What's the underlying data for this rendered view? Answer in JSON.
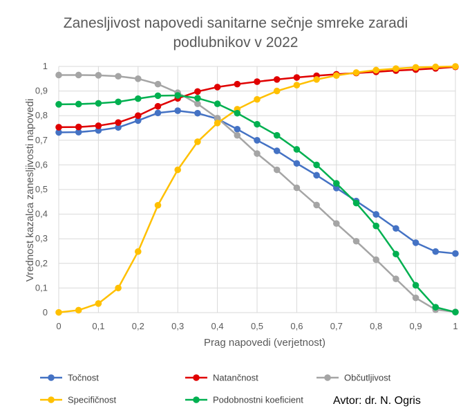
{
  "chart_data": {
    "type": "line",
    "title_lines": [
      "Zanesljivost napovedi sanitarne sečnje smreke zaradi",
      "podlubnikov v 2022"
    ],
    "xlabel": "Prag napovedi (verjetnost)",
    "ylabel": "Vrednost kazalca zanesljivosti napovedi",
    "xlim": [
      0,
      1
    ],
    "ylim": [
      0,
      1
    ],
    "grid": true,
    "legend_position": "bottom",
    "x_ticks": [
      "0",
      "0,1",
      "0,2",
      "0,3",
      "0,4",
      "0,5",
      "0,6",
      "0,7",
      "0,8",
      "0,9",
      "1"
    ],
    "y_ticks": [
      "0",
      "0,1",
      "0,2",
      "0,3",
      "0,4",
      "0,5",
      "0,6",
      "0,7",
      "0,8",
      "0,9",
      "1"
    ],
    "x": [
      0,
      0.05,
      0.1,
      0.15,
      0.2,
      0.25,
      0.3,
      0.35,
      0.4,
      0.45,
      0.5,
      0.55,
      0.6,
      0.65,
      0.7,
      0.75,
      0.8,
      0.85,
      0.9,
      0.95,
      1.0
    ],
    "series": [
      {
        "name": "Točnost",
        "color": "#4472C4",
        "values": [
          0.732,
          0.733,
          0.74,
          0.752,
          0.78,
          0.811,
          0.82,
          0.81,
          0.787,
          0.745,
          0.7,
          0.657,
          0.606,
          0.558,
          0.506,
          0.453,
          0.399,
          0.342,
          0.284,
          0.248,
          0.24
        ]
      },
      {
        "name": "Natančnost",
        "color": "#E00000",
        "values": [
          0.753,
          0.754,
          0.759,
          0.772,
          0.8,
          0.838,
          0.87,
          0.898,
          0.916,
          0.928,
          0.938,
          0.947,
          0.955,
          0.962,
          0.968,
          0.973,
          0.978,
          0.983,
          0.987,
          0.992,
          0.998
        ]
      },
      {
        "name": "Občutljivost",
        "color": "#A5A5A5",
        "values": [
          0.965,
          0.965,
          0.964,
          0.96,
          0.95,
          0.928,
          0.893,
          0.848,
          0.79,
          0.72,
          0.646,
          0.58,
          0.507,
          0.437,
          0.362,
          0.29,
          0.215,
          0.137,
          0.06,
          0.012,
          0.003
        ]
      },
      {
        "name": "Specifičnost",
        "color": "#FFC000",
        "values": [
          0.001,
          0.01,
          0.037,
          0.1,
          0.248,
          0.436,
          0.58,
          0.694,
          0.77,
          0.826,
          0.866,
          0.9,
          0.924,
          0.947,
          0.963,
          0.975,
          0.985,
          0.991,
          0.996,
          0.998,
          1.0
        ]
      },
      {
        "name": "Podobnostni koeficient",
        "color": "#00B050",
        "values": [
          0.846,
          0.847,
          0.85,
          0.856,
          0.869,
          0.881,
          0.882,
          0.871,
          0.848,
          0.81,
          0.765,
          0.72,
          0.663,
          0.6,
          0.525,
          0.445,
          0.352,
          0.238,
          0.111,
          0.022,
          0.002
        ]
      }
    ],
    "annotation": "Avtor: dr. N. Ogris"
  }
}
